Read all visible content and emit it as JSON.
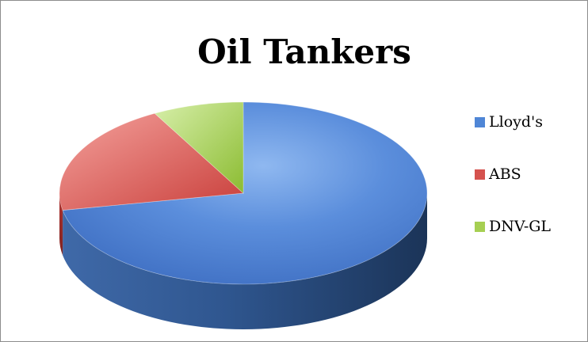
{
  "chart_data": {
    "type": "pie",
    "title": "Oil Tankers",
    "style": "3d",
    "legend_position": "right",
    "slices": [
      {
        "label": "Lloyd's",
        "value": 72,
        "color": "#4a7fd0"
      },
      {
        "label": "ABS",
        "value": 20,
        "color": "#d14a47"
      },
      {
        "label": "DNV-GL",
        "value": 8,
        "color": "#95c13d"
      }
    ]
  }
}
